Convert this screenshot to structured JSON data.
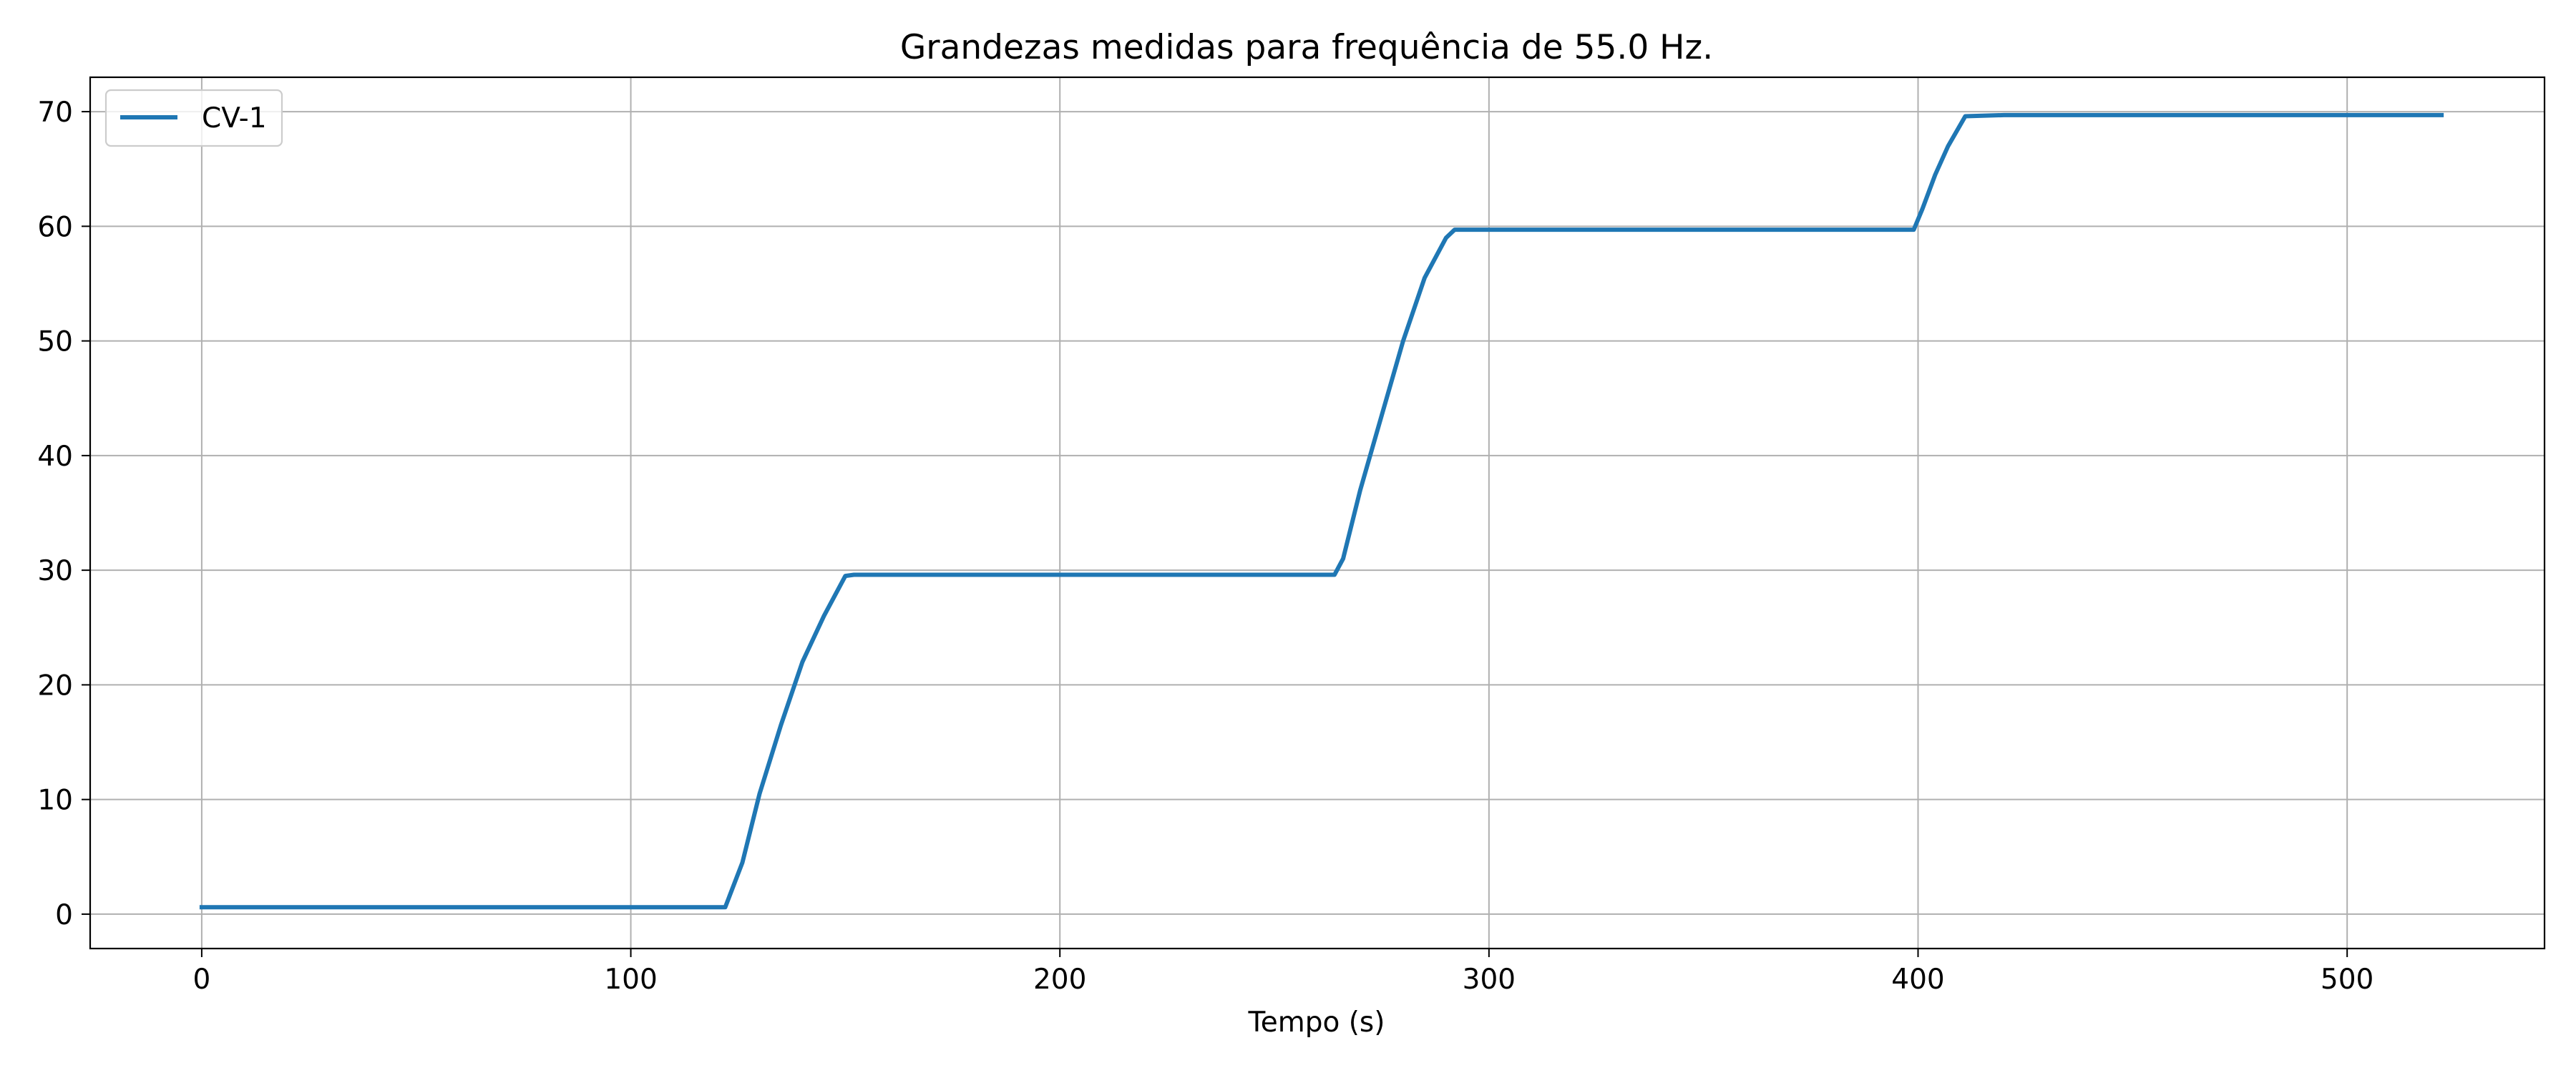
{
  "chart_data": {
    "type": "line",
    "title": "Grandezas medidas para frequência de 55.0 Hz.",
    "xlabel": "Tempo (s)",
    "ylabel": "",
    "xlim": [
      -26,
      546
    ],
    "ylim": [
      -3,
      73
    ],
    "xticks": [
      0,
      100,
      200,
      300,
      400,
      500
    ],
    "yticks": [
      0,
      10,
      20,
      30,
      40,
      50,
      60,
      70
    ],
    "grid": true,
    "legend_position": "upper-left",
    "series": [
      {
        "name": "CV-1",
        "color": "#1f77b4",
        "x": [
          0,
          20,
          40,
          60,
          80,
          100,
          122,
          126,
          130,
          135,
          140,
          145,
          150,
          152,
          160,
          180,
          200,
          220,
          240,
          264,
          266,
          270,
          275,
          280,
          285,
          290,
          292,
          300,
          320,
          340,
          360,
          380,
          399,
          401,
          404,
          407,
          411,
          420,
          440,
          460,
          480,
          500,
          522
        ],
        "y": [
          0.6,
          0.6,
          0.6,
          0.6,
          0.6,
          0.6,
          0.6,
          4.5,
          10.5,
          16.5,
          22.0,
          26.0,
          29.5,
          29.6,
          29.6,
          29.6,
          29.6,
          29.6,
          29.6,
          29.6,
          31.0,
          37.0,
          43.5,
          50.0,
          55.5,
          59.0,
          59.7,
          59.7,
          59.7,
          59.7,
          59.7,
          59.7,
          59.7,
          61.5,
          64.5,
          67.0,
          69.6,
          69.7,
          69.7,
          69.7,
          69.7,
          69.7,
          69.7
        ]
      }
    ]
  }
}
